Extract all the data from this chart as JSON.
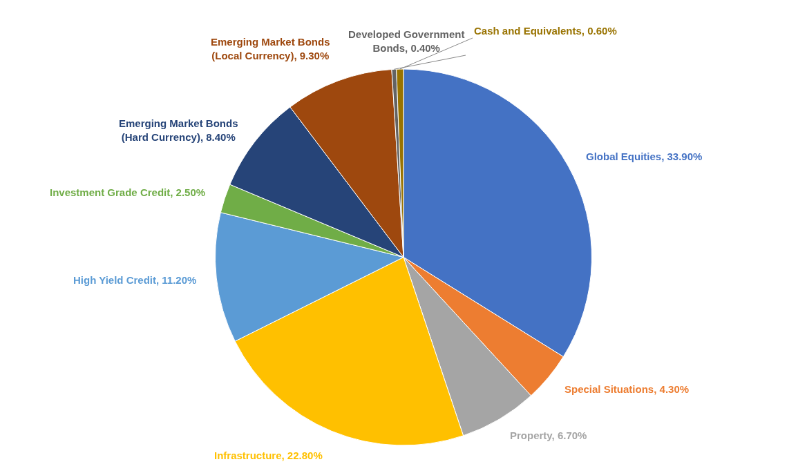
{
  "chart_data": {
    "type": "pie",
    "categories": [
      "Global Equities",
      "Special Situations",
      "Property",
      "Infrastructure",
      "High Yield Credit",
      "Investment Grade Credit",
      "Emerging Market Bonds (Hard Currency)",
      "Emerging Market Bonds (Local Currency)",
      "Developed Government Bonds",
      "Cash and Equivalents"
    ],
    "values": [
      33.9,
      4.3,
      6.7,
      22.8,
      11.2,
      2.5,
      8.4,
      9.3,
      0.4,
      0.6
    ],
    "value_labels": [
      "33.90%",
      "4.30%",
      "6.70%",
      "22.80%",
      "11.20%",
      "2.50%",
      "8.40%",
      "9.30%",
      "0.40%",
      "0.60%"
    ],
    "colors": [
      "#4472c4",
      "#ed7d31",
      "#a5a5a5",
      "#ffc000",
      "#5b9bd5",
      "#70ad47",
      "#264478",
      "#9e480e",
      "#636363",
      "#997300"
    ],
    "legend": false
  }
}
